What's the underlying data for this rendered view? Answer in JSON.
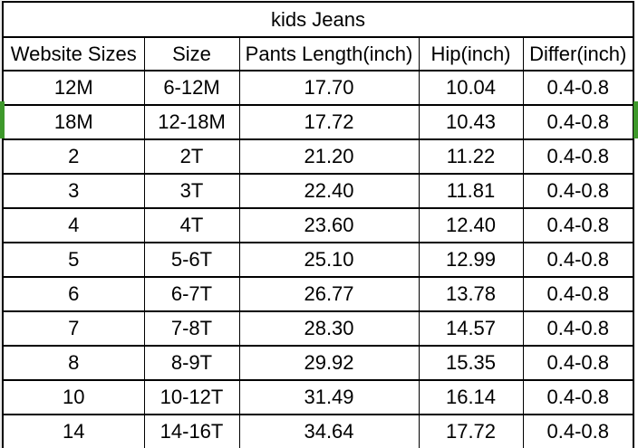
{
  "table": {
    "title": "kids Jeans",
    "columns": [
      "Website Sizes",
      "Size",
      "Pants Length(inch)",
      "Hip(inch)",
      "Differ(inch)"
    ],
    "rows": [
      [
        "12M",
        "6-12M",
        "17.70",
        "10.04",
        "0.4-0.8"
      ],
      [
        "18M",
        "12-18M",
        "17.72",
        "10.43",
        "0.4-0.8"
      ],
      [
        "2",
        "2T",
        "21.20",
        "11.22",
        "0.4-0.8"
      ],
      [
        "3",
        "3T",
        "22.40",
        "11.81",
        "0.4-0.8"
      ],
      [
        "4",
        "4T",
        "23.60",
        "12.40",
        "0.4-0.8"
      ],
      [
        "5",
        "5-6T",
        "25.10",
        "12.99",
        "0.4-0.8"
      ],
      [
        "6",
        "6-7T",
        "26.77",
        "13.78",
        "0.4-0.8"
      ],
      [
        "7",
        "7-8T",
        "28.30",
        "14.57",
        "0.4-0.8"
      ],
      [
        "8",
        "8-9T",
        "29.92",
        "15.35",
        "0.4-0.8"
      ],
      [
        "10",
        "10-12T",
        "31.49",
        "16.14",
        "0.4-0.8"
      ],
      [
        "14",
        "14-16T",
        "34.64",
        "17.72",
        "0.4-0.8"
      ]
    ],
    "selected_row_index": 1
  },
  "colors": {
    "selection_green": "#3E992B",
    "grid_border": "#000000",
    "gutter_gray": "#EBEBEB"
  }
}
